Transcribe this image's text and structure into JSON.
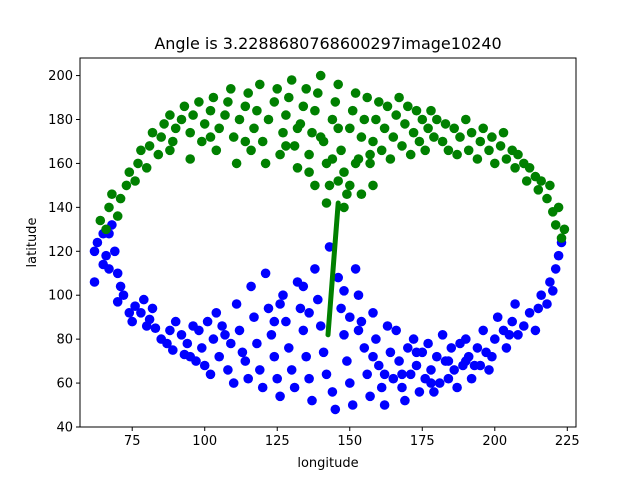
{
  "chart_data": {
    "type": "scatter",
    "title": "Angle is 3.2288680768600297image10240",
    "xlabel": "longitude",
    "ylabel": "latitude",
    "xlim": [
      57,
      228
    ],
    "ylim": [
      40,
      208
    ],
    "xticks": [
      75,
      100,
      125,
      150,
      175,
      200,
      225
    ],
    "yticks": [
      40,
      60,
      80,
      100,
      120,
      140,
      160,
      180,
      200
    ],
    "grid": false,
    "legend": "none",
    "series": [
      {
        "color": "#0000ff",
        "points": [
          [
            62,
            106
          ],
          [
            62,
            120
          ],
          [
            63,
            124
          ],
          [
            65,
            128
          ],
          [
            66,
            118
          ],
          [
            67,
            128
          ],
          [
            68,
            132
          ],
          [
            67,
            112
          ],
          [
            69,
            120
          ],
          [
            70,
            110
          ],
          [
            71,
            104
          ],
          [
            70,
            97
          ],
          [
            74,
            92
          ],
          [
            72,
            100
          ],
          [
            75,
            88
          ],
          [
            76,
            95
          ],
          [
            78,
            92
          ],
          [
            80,
            86
          ],
          [
            79,
            98
          ],
          [
            82,
            94
          ],
          [
            83,
            85
          ],
          [
            85,
            80
          ],
          [
            87,
            78
          ],
          [
            89,
            75
          ],
          [
            90,
            88
          ],
          [
            92,
            82
          ],
          [
            93,
            73
          ],
          [
            95,
            72
          ],
          [
            96,
            86
          ],
          [
            98,
            84
          ],
          [
            99,
            76
          ],
          [
            100,
            68
          ],
          [
            102,
            64
          ],
          [
            101,
            88
          ],
          [
            103,
            80
          ],
          [
            104,
            92
          ],
          [
            106,
            86
          ],
          [
            105,
            72
          ],
          [
            108,
            66
          ],
          [
            109,
            78
          ],
          [
            110,
            60
          ],
          [
            111,
            96
          ],
          [
            112,
            84
          ],
          [
            114,
            70
          ],
          [
            115,
            62
          ],
          [
            116,
            104
          ],
          [
            117,
            90
          ],
          [
            118,
            78
          ],
          [
            119,
            66
          ],
          [
            120,
            58
          ],
          [
            121,
            110
          ],
          [
            122,
            94
          ],
          [
            123,
            82
          ],
          [
            124,
            72
          ],
          [
            125,
            62
          ],
          [
            126,
            54
          ],
          [
            127,
            100
          ],
          [
            128,
            88
          ],
          [
            129,
            76
          ],
          [
            130,
            66
          ],
          [
            131,
            58
          ],
          [
            132,
            106
          ],
          [
            133,
            94
          ],
          [
            134,
            84
          ],
          [
            135,
            72
          ],
          [
            136,
            62
          ],
          [
            137,
            52
          ],
          [
            138,
            112
          ],
          [
            139,
            98
          ],
          [
            140,
            86
          ],
          [
            141,
            74
          ],
          [
            142,
            64
          ],
          [
            143,
            122
          ],
          [
            144,
            56
          ],
          [
            145,
            48
          ],
          [
            146,
            108
          ],
          [
            147,
            94
          ],
          [
            148,
            82
          ],
          [
            149,
            70
          ],
          [
            150,
            60
          ],
          [
            151,
            50
          ],
          [
            152,
            112
          ],
          [
            153,
            100
          ],
          [
            154,
            88
          ],
          [
            155,
            76
          ],
          [
            156,
            64
          ],
          [
            157,
            54
          ],
          [
            158,
            92
          ],
          [
            159,
            80
          ],
          [
            160,
            68
          ],
          [
            161,
            58
          ],
          [
            162,
            50
          ],
          [
            163,
            86
          ],
          [
            164,
            74
          ],
          [
            165,
            62
          ],
          [
            166,
            84
          ],
          [
            167,
            70
          ],
          [
            168,
            58
          ],
          [
            169,
            52
          ],
          [
            170,
            76
          ],
          [
            171,
            64
          ],
          [
            172,
            80
          ],
          [
            173,
            68
          ],
          [
            174,
            56
          ],
          [
            175,
            74
          ],
          [
            176,
            62
          ],
          [
            177,
            78
          ],
          [
            178,
            66
          ],
          [
            179,
            56
          ],
          [
            180,
            72
          ],
          [
            181,
            60
          ],
          [
            182,
            82
          ],
          [
            183,
            70
          ],
          [
            184,
            62
          ],
          [
            185,
            76
          ],
          [
            186,
            66
          ],
          [
            187,
            58
          ],
          [
            188,
            78
          ],
          [
            189,
            68
          ],
          [
            190,
            80
          ],
          [
            191,
            72
          ],
          [
            192,
            62
          ],
          [
            194,
            76
          ],
          [
            195,
            68
          ],
          [
            196,
            84
          ],
          [
            197,
            74
          ],
          [
            198,
            66
          ],
          [
            200,
            80
          ],
          [
            201,
            90
          ],
          [
            203,
            84
          ],
          [
            204,
            76
          ],
          [
            206,
            88
          ],
          [
            207,
            96
          ],
          [
            208,
            82
          ],
          [
            210,
            86
          ],
          [
            212,
            92
          ],
          [
            214,
            84
          ],
          [
            215,
            94
          ],
          [
            216,
            100
          ],
          [
            218,
            96
          ],
          [
            219,
            106
          ],
          [
            220,
            102
          ],
          [
            221,
            112
          ],
          [
            222,
            118
          ],
          [
            223,
            124
          ],
          [
            65,
            114
          ],
          [
            81,
            89
          ],
          [
            88,
            84
          ],
          [
            94,
            78
          ],
          [
            97,
            70
          ],
          [
            107,
            82
          ],
          [
            113,
            74
          ],
          [
            124,
            88
          ],
          [
            126,
            96
          ],
          [
            134,
            104
          ],
          [
            136,
            92
          ],
          [
            148,
            102
          ],
          [
            150,
            90
          ],
          [
            153,
            84
          ],
          [
            158,
            72
          ],
          [
            162,
            64
          ],
          [
            168,
            64
          ],
          [
            173,
            74
          ],
          [
            178,
            60
          ],
          [
            184,
            70
          ],
          [
            190,
            70
          ],
          [
            193,
            68
          ],
          [
            199,
            72
          ],
          [
            205,
            82
          ]
        ]
      },
      {
        "color": "#008000",
        "points": [
          [
            64,
            134
          ],
          [
            66,
            130
          ],
          [
            67,
            140
          ],
          [
            68,
            146
          ],
          [
            70,
            136
          ],
          [
            71,
            144
          ],
          [
            73,
            150
          ],
          [
            74,
            156
          ],
          [
            76,
            152
          ],
          [
            77,
            160
          ],
          [
            78,
            166
          ],
          [
            80,
            158
          ],
          [
            81,
            168
          ],
          [
            82,
            174
          ],
          [
            84,
            164
          ],
          [
            85,
            172
          ],
          [
            86,
            178
          ],
          [
            88,
            182
          ],
          [
            89,
            170
          ],
          [
            90,
            176
          ],
          [
            92,
            180
          ],
          [
            93,
            186
          ],
          [
            95,
            174
          ],
          [
            96,
            182
          ],
          [
            98,
            188
          ],
          [
            99,
            170
          ],
          [
            100,
            178
          ],
          [
            102,
            184
          ],
          [
            103,
            190
          ],
          [
            104,
            166
          ],
          [
            105,
            176
          ],
          [
            107,
            182
          ],
          [
            108,
            188
          ],
          [
            109,
            194
          ],
          [
            110,
            172
          ],
          [
            111,
            160
          ],
          [
            112,
            180
          ],
          [
            114,
            186
          ],
          [
            115,
            192
          ],
          [
            116,
            166
          ],
          [
            117,
            176
          ],
          [
            118,
            184
          ],
          [
            119,
            196
          ],
          [
            120,
            170
          ],
          [
            121,
            160
          ],
          [
            122,
            180
          ],
          [
            124,
            188
          ],
          [
            125,
            194
          ],
          [
            126,
            164
          ],
          [
            127,
            174
          ],
          [
            128,
            182
          ],
          [
            129,
            190
          ],
          [
            130,
            198
          ],
          [
            131,
            168
          ],
          [
            132,
            158
          ],
          [
            133,
            178
          ],
          [
            134,
            186
          ],
          [
            135,
            194
          ],
          [
            136,
            164
          ],
          [
            137,
            174
          ],
          [
            138,
            184
          ],
          [
            139,
            192
          ],
          [
            140,
            200
          ],
          [
            141,
            170
          ],
          [
            142,
            160
          ],
          [
            143,
            150
          ],
          [
            144,
            180
          ],
          [
            145,
            188
          ],
          [
            146,
            196
          ],
          [
            147,
            166
          ],
          [
            148,
            156
          ],
          [
            149,
            146
          ],
          [
            150,
            176
          ],
          [
            151,
            184
          ],
          [
            152,
            192
          ],
          [
            153,
            162
          ],
          [
            154,
            172
          ],
          [
            155,
            180
          ],
          [
            156,
            190
          ],
          [
            157,
            160
          ],
          [
            158,
            170
          ],
          [
            159,
            180
          ],
          [
            160,
            188
          ],
          [
            161,
            166
          ],
          [
            162,
            176
          ],
          [
            163,
            186
          ],
          [
            164,
            162
          ],
          [
            165,
            172
          ],
          [
            166,
            182
          ],
          [
            167,
            190
          ],
          [
            168,
            168
          ],
          [
            169,
            178
          ],
          [
            170,
            186
          ],
          [
            171,
            164
          ],
          [
            172,
            174
          ],
          [
            173,
            184
          ],
          [
            174,
            170
          ],
          [
            175,
            180
          ],
          [
            176,
            166
          ],
          [
            177,
            176
          ],
          [
            178,
            184
          ],
          [
            179,
            172
          ],
          [
            180,
            180
          ],
          [
            182,
            170
          ],
          [
            183,
            178
          ],
          [
            184,
            166
          ],
          [
            186,
            176
          ],
          [
            187,
            164
          ],
          [
            188,
            172
          ],
          [
            190,
            180
          ],
          [
            191,
            166
          ],
          [
            192,
            174
          ],
          [
            194,
            162
          ],
          [
            195,
            170
          ],
          [
            196,
            176
          ],
          [
            198,
            166
          ],
          [
            199,
            172
          ],
          [
            200,
            160
          ],
          [
            202,
            168
          ],
          [
            203,
            174
          ],
          [
            204,
            162
          ],
          [
            206,
            166
          ],
          [
            207,
            158
          ],
          [
            208,
            164
          ],
          [
            210,
            160
          ],
          [
            211,
            152
          ],
          [
            212,
            158
          ],
          [
            214,
            154
          ],
          [
            215,
            148
          ],
          [
            216,
            152
          ],
          [
            218,
            144
          ],
          [
            219,
            150
          ],
          [
            220,
            138
          ],
          [
            221,
            132
          ],
          [
            222,
            140
          ],
          [
            223,
            126
          ],
          [
            224,
            130
          ],
          [
            140,
            172
          ],
          [
            142,
            142
          ],
          [
            144,
            162
          ],
          [
            146,
            176
          ],
          [
            148,
            140
          ],
          [
            150,
            150
          ],
          [
            152,
            160
          ],
          [
            154,
            146
          ],
          [
            146,
            152
          ],
          [
            138,
            150
          ],
          [
            136,
            156
          ],
          [
            157,
            164
          ],
          [
            158,
            150
          ],
          [
            88,
            166
          ],
          [
            95,
            162
          ],
          [
            102,
            172
          ],
          [
            114,
            170
          ],
          [
            128,
            168
          ],
          [
            132,
            176
          ]
        ]
      }
    ],
    "annotations": [
      {
        "type": "line",
        "color": "#008000",
        "from": [
          142.5,
          82
        ],
        "to": [
          146,
          142
        ]
      }
    ]
  }
}
